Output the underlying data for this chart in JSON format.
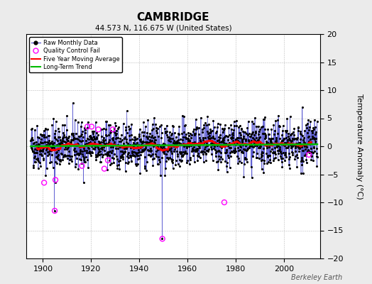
{
  "title": "CAMBRIDGE",
  "subtitle": "44.573 N, 116.675 W (United States)",
  "ylabel": "Temperature Anomaly (°C)",
  "watermark": "Berkeley Earth",
  "xlim": [
    1893,
    2015
  ],
  "ylim": [
    -20,
    20
  ],
  "yticks": [
    -20,
    -15,
    -10,
    -5,
    0,
    5,
    10,
    15,
    20
  ],
  "xticks": [
    1900,
    1920,
    1940,
    1960,
    1980,
    2000
  ],
  "seed": 42,
  "start_year": 1895,
  "end_year": 2014,
  "background_color": "#ebebeb",
  "plot_bg_color": "#ffffff",
  "raw_color": "#4444cc",
  "raw_marker_color": "#000000",
  "qc_color": "#ff00ff",
  "moving_avg_color": "#ff0000",
  "trend_color": "#00bb00",
  "noise_std": 2.0
}
